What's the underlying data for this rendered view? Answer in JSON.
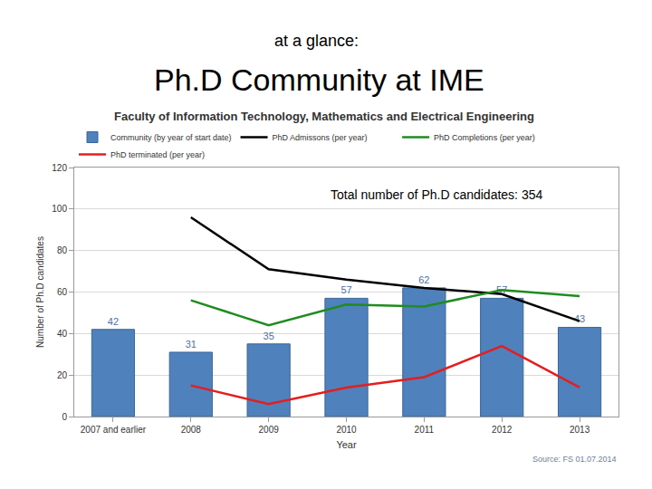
{
  "chart_data": {
    "type": "bar",
    "header": "at a glance:",
    "title": "Ph.D Community at IME",
    "subtitle": "Faculty of Information Technology, Mathematics and Electrical Engineering",
    "note": "Total number of Ph.D candidates: 354",
    "source": "Source: FS 01.07.2014",
    "x_label": "Year",
    "y_label": "Number of Ph.D candidates",
    "categories": [
      "2007 and earlier",
      "2008",
      "2009",
      "2010",
      "2011",
      "2012",
      "2013"
    ],
    "series": [
      {
        "name": "Community (by year of start date)",
        "type": "bar",
        "color": "#4f81bd",
        "data_labels": true,
        "values": [
          42,
          31,
          35,
          57,
          62,
          57,
          43
        ]
      },
      {
        "name": "PhD Admissons (per year)",
        "type": "line",
        "color": "#000000",
        "values": [
          null,
          96,
          71,
          66,
          62,
          59,
          46
        ]
      },
      {
        "name": "PhD Completions (per year)",
        "type": "line",
        "color": "#1e8c1e",
        "values": [
          null,
          56,
          44,
          54,
          53,
          61,
          58
        ]
      },
      {
        "name": "PhD terminated (per year)",
        "type": "line",
        "color": "#e41e1e",
        "values": [
          null,
          15,
          6,
          14,
          19,
          34,
          14
        ]
      }
    ],
    "ylim": [
      0,
      120
    ],
    "yticks": [
      0,
      20,
      40,
      60,
      80,
      100,
      120
    ],
    "grid": true,
    "legend": "top"
  }
}
